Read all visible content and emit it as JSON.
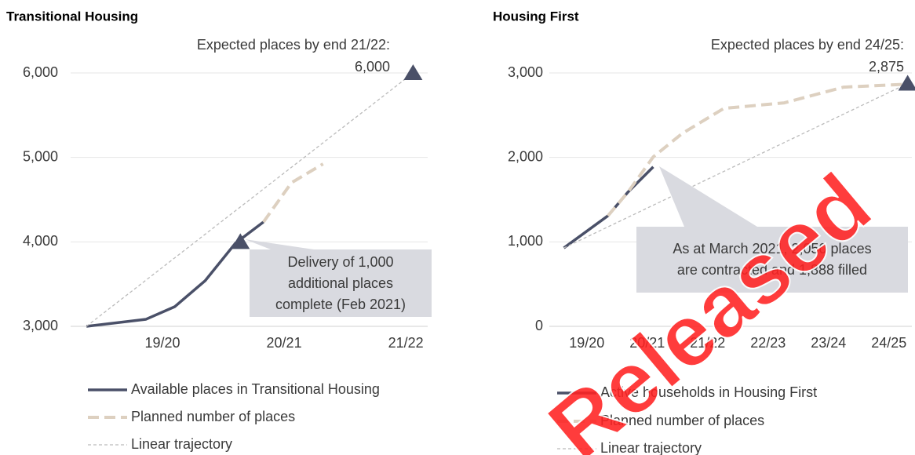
{
  "chart_data": [
    {
      "type": "line",
      "title": "Transitional Housing",
      "categories": [
        "19/20",
        "20/21",
        "21/22"
      ],
      "category_x": [
        1,
        2,
        3
      ],
      "xlim": [
        0.245,
        3.18
      ],
      "ylim": [
        3000,
        6000
      ],
      "yticks": [
        {
          "value": 3000,
          "label": "3,000"
        },
        {
          "value": 4000,
          "label": "4,000"
        },
        {
          "value": 5000,
          "label": "5,000"
        },
        {
          "value": 6000,
          "label": "6,000"
        }
      ],
      "grid": true,
      "series": [
        {
          "name": "Available places in Transitional Housing",
          "color": "#4a5068",
          "style": "solid",
          "x": [
            0.375,
            0.865,
            1.1,
            1.35,
            1.6,
            1.83
          ],
          "values": [
            3000,
            3084,
            3232,
            3539,
            3985,
            4235
          ]
        },
        {
          "name": "Planned number of places",
          "color": "#ddd0c0",
          "style": "dashed",
          "x": [
            1.83,
            2.06,
            2.32
          ],
          "values": [
            4235,
            4700,
            4923
          ]
        },
        {
          "name": "Linear trajectory",
          "color": "#bbbbbb",
          "style": "dotted",
          "x": [
            0.375,
            3.06
          ],
          "values": [
            3000,
            6000
          ]
        }
      ],
      "target": {
        "label": "Expected places by end 21/22:",
        "x": 3.06,
        "value": 6000,
        "value_label": "6,000"
      },
      "milestone": {
        "x": 1.64,
        "value": 4000
      },
      "callout": [
        "Delivery of 1,000",
        "additional places",
        "complete (Feb 2021)"
      ]
    },
    {
      "type": "line",
      "title": "Housing First",
      "categories": [
        "19/20",
        "20/21",
        "21/22",
        "22/23",
        "23/24",
        "24/25"
      ],
      "category_x": [
        1,
        2,
        3,
        4,
        5,
        6
      ],
      "xlim": [
        0.38,
        6.38
      ],
      "ylim": [
        0,
        3000
      ],
      "yticks": [
        0,
        {
          "value": 1000,
          "label": "1,000"
        },
        {
          "value": 2000,
          "label": "2,000"
        },
        {
          "value": 3000,
          "label": "3,000"
        }
      ],
      "grid": true,
      "series": [
        {
          "name": "Active households in Housing First",
          "color": "#4a5068",
          "style": "solid",
          "x": [
            0.62,
            1.35,
            1.68,
            2.1
          ],
          "values": [
            928,
            1309,
            1588,
            1888
          ]
        },
        {
          "name": "Planned number of places",
          "color": "#ddd0c0",
          "style": "dashed",
          "x": [
            1.35,
            1.68,
            2.1,
            2.58,
            3.27,
            4.27,
            5.25,
            6.35
          ],
          "values": [
            1309,
            1588,
            2006,
            2284,
            2581,
            2646,
            2832,
            2869
          ]
        },
        {
          "name": "Linear trajectory",
          "color": "#bbbbbb",
          "style": "dotted",
          "x": [
            0.62,
            6.31
          ],
          "values": [
            928,
            2875
          ]
        }
      ],
      "target": {
        "label": "Expected places by end 24/25:",
        "x": 6.31,
        "value": 2875,
        "value_label": "2,875"
      },
      "callout": [
        "As at March 2021, 2,050 places",
        "are contracted and 1,888 filled"
      ]
    }
  ],
  "watermark": "Released"
}
